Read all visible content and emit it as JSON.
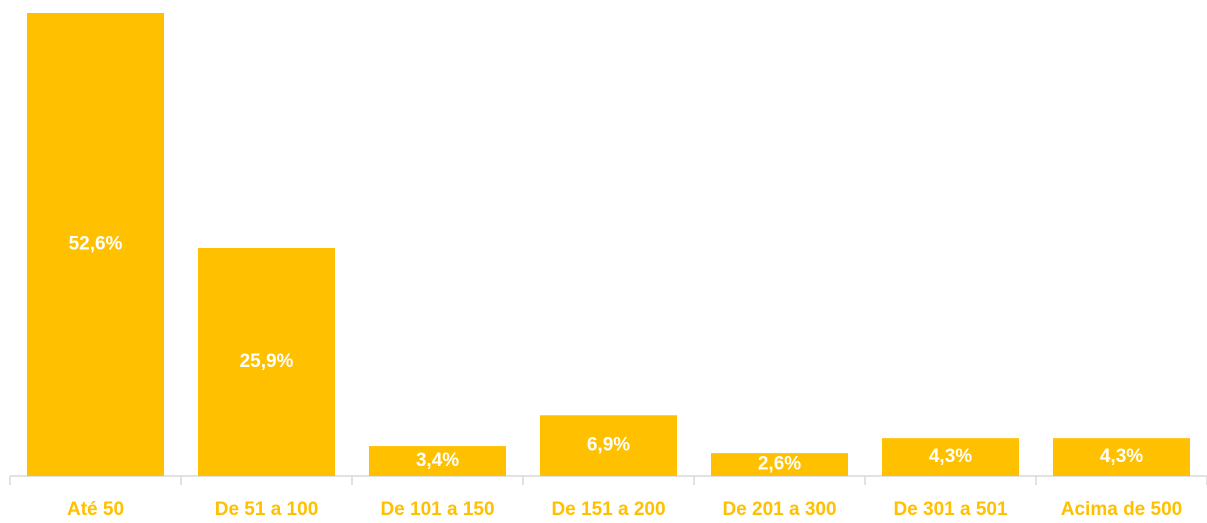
{
  "chart_data": {
    "type": "bar",
    "categories": [
      "Até 50",
      "De 51 a 100",
      "De 101 a 150",
      "De 151 a 200",
      "De 201 a 300",
      "De 301 a 501",
      "Acima de 500"
    ],
    "values": [
      52.6,
      25.9,
      3.4,
      6.9,
      2.6,
      4.3,
      4.3
    ],
    "value_labels": [
      "52,6%",
      "25,9%",
      "3,4%",
      "6,9%",
      "2,6%",
      "4,3%",
      "4,3%"
    ],
    "color": "#ffc000"
  }
}
